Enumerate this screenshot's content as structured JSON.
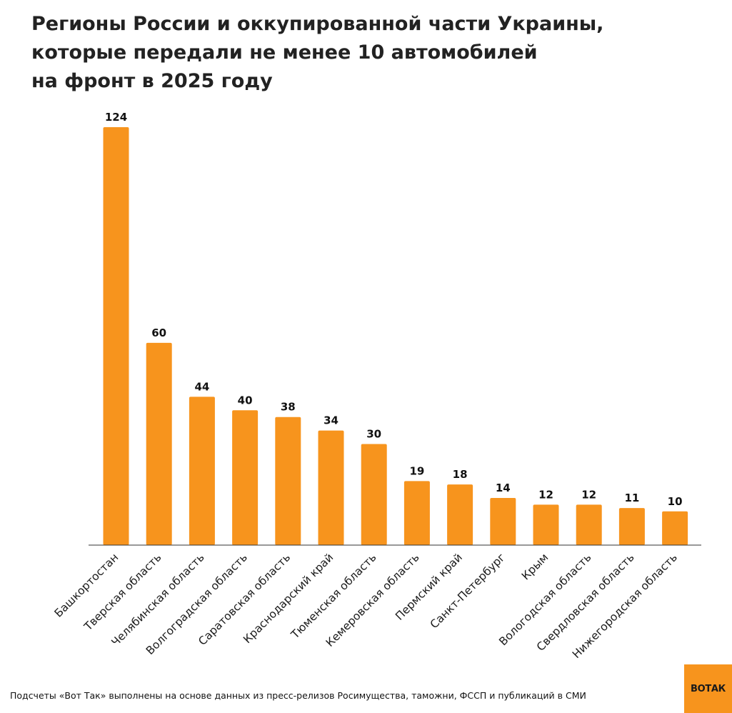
{
  "title_lines": [
    "Регионы России и оккупированной части Украины,",
    "которые передали не менее 10 автомобилей",
    "на фронт в 2025 году"
  ],
  "footnote": "Подсчеты «Вот Так» выполнены на основе данных из пресс-релизов Росимущества, таможни, ФССП и публикаций в СМИ",
  "logo": {
    "text": "ВОТАК",
    "background": "#f7941d"
  },
  "chart_data": {
    "type": "bar",
    "title": "Регионы России и оккупированной части Украины, которые передали не менее 10 автомобилей на фронт в 2025 году",
    "xlabel": "",
    "ylabel": "",
    "ylim": [
      0,
      124
    ],
    "grid": false,
    "bar_color": "#f7941d",
    "categories": [
      "Башкортостан",
      "Тверская область",
      "Челябинская область",
      "Волгоградская область",
      "Саратовская область",
      "Краснодарский край",
      "Тюменская область",
      "Кемеровская область",
      "Пермский край",
      "Санкт-Петербург",
      "Крым",
      "Вологодская область",
      "Свердловская область",
      "Нижегородская область"
    ],
    "values": [
      124,
      60,
      44,
      40,
      38,
      34,
      30,
      19,
      18,
      14,
      12,
      12,
      11,
      10
    ]
  }
}
